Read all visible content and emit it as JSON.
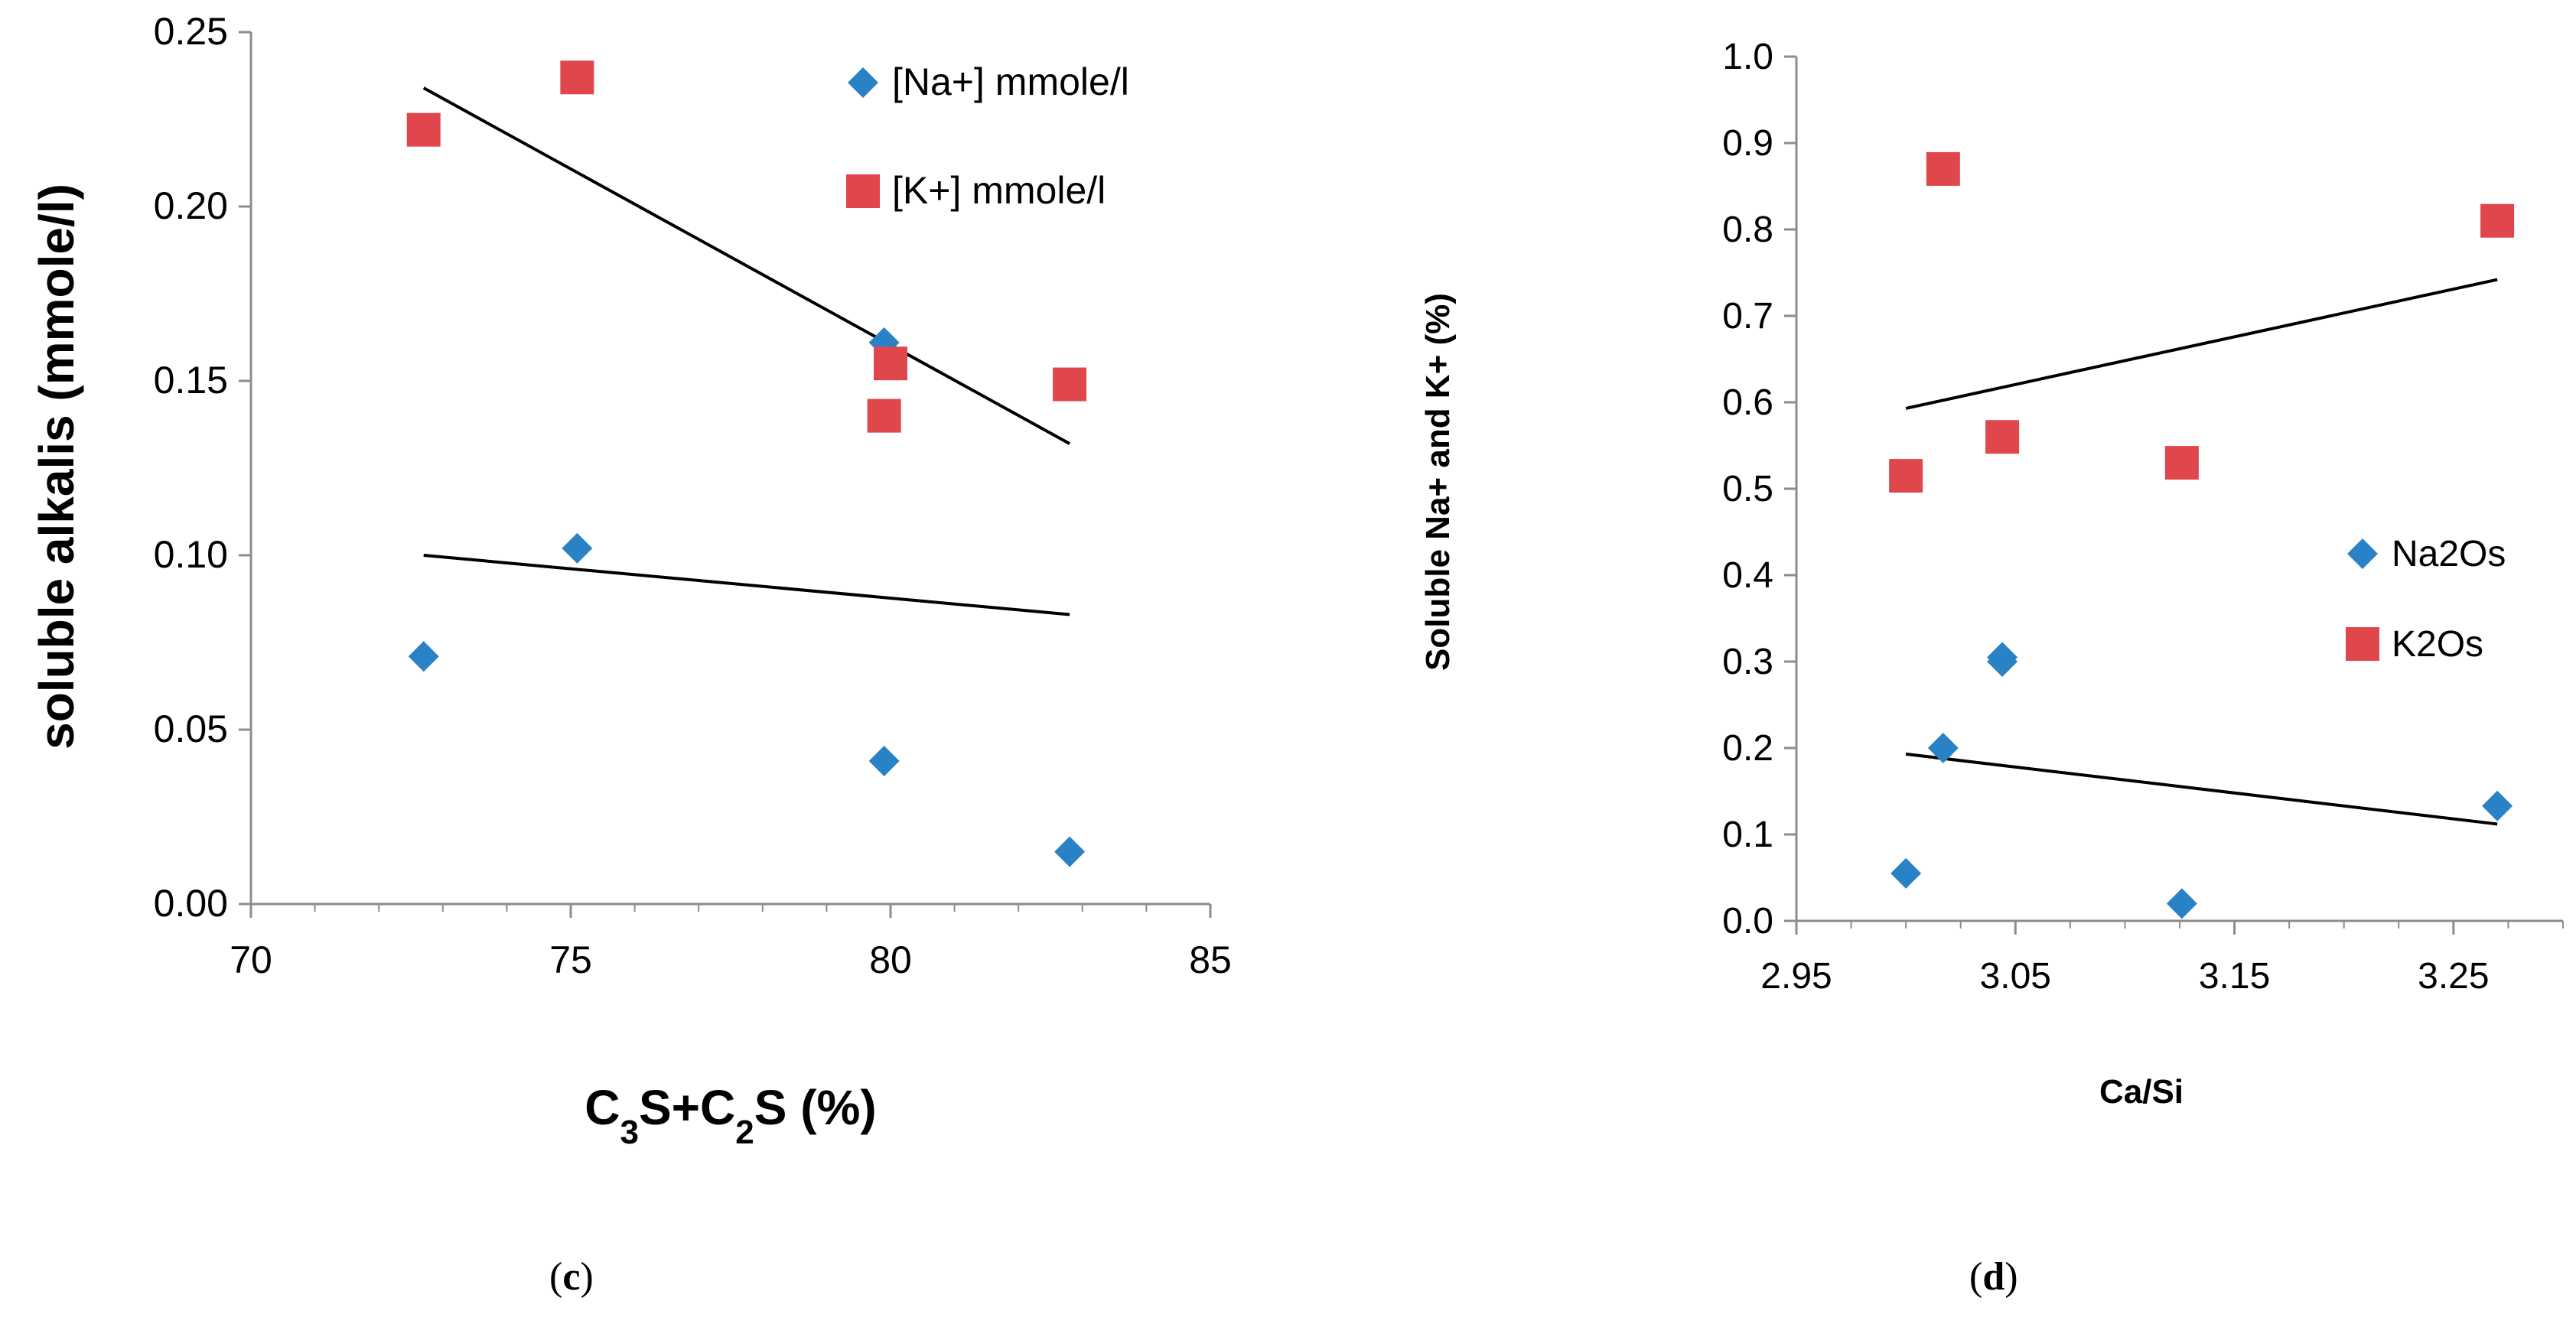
{
  "chart_data": [
    {
      "type": "scatter",
      "caption": "c",
      "title": "",
      "xlabel": "C3S+C2S (%)",
      "xlabel_parts": {
        "a": "C",
        "a_sub": "3",
        "b": "S+C",
        "b_sub": "2",
        "c": "S (%)"
      },
      "ylabel": "soluble alkalis (mmole/l)",
      "xlim": [
        70,
        85
      ],
      "ylim": [
        0,
        0.25
      ],
      "xticks": [
        "70",
        "75",
        "80",
        "85"
      ],
      "yticks": [
        "0.00",
        "0.05",
        "0.10",
        "0.15",
        "0.20",
        "0.25"
      ],
      "legend_position": "top-right",
      "series": [
        {
          "name": "[Na+] mmole/l",
          "marker": "diamond",
          "color": "#2a82c6",
          "points": [
            [
              72.7,
              0.071
            ],
            [
              75.1,
              0.102
            ],
            [
              79.9,
              0.161
            ],
            [
              79.9,
              0.041
            ],
            [
              82.8,
              0.015
            ]
          ],
          "trendline": [
            [
              72.7,
              0.1
            ],
            [
              82.8,
              0.083
            ]
          ]
        },
        {
          "name": "[K+] mmole/l",
          "marker": "square",
          "color": "#e0474c",
          "points": [
            [
              72.7,
              0.222
            ],
            [
              75.1,
              0.237
            ],
            [
              80.0,
              0.155
            ],
            [
              79.9,
              0.14
            ],
            [
              82.8,
              0.149
            ]
          ],
          "trendline": [
            [
              72.7,
              0.234
            ],
            [
              82.8,
              0.132
            ]
          ]
        }
      ]
    },
    {
      "type": "scatter",
      "caption": "d",
      "title": "",
      "xlabel": "Ca/Si",
      "ylabel": "Soluble Na+ and K+ (%)",
      "xlim": [
        2.95,
        3.3
      ],
      "ylim": [
        0,
        1.0
      ],
      "xticks": [
        "2.95",
        "3.05",
        "3.15",
        "3.25"
      ],
      "xtick_values": [
        2.95,
        3.05,
        3.15,
        3.25
      ],
      "yticks": [
        "0.0",
        "0.1",
        "0.2",
        "0.3",
        "0.4",
        "0.5",
        "0.6",
        "0.7",
        "0.8",
        "0.9",
        "1.0"
      ],
      "legend_position": "right",
      "series": [
        {
          "name": "Na2Os",
          "marker": "diamond",
          "color": "#2a82c6",
          "points": [
            [
              3.0,
              0.055
            ],
            [
              3.017,
              0.2
            ],
            [
              3.044,
              0.3
            ],
            [
              3.044,
              0.305
            ],
            [
              3.126,
              0.02
            ],
            [
              3.27,
              0.133
            ]
          ],
          "trendline": [
            [
              3.0,
              0.193
            ],
            [
              3.27,
              0.112
            ]
          ]
        },
        {
          "name": "K2Os",
          "marker": "square",
          "color": "#e0474c",
          "points": [
            [
              3.0,
              0.515
            ],
            [
              3.017,
              0.87
            ],
            [
              3.044,
              0.56
            ],
            [
              3.126,
              0.53
            ],
            [
              3.27,
              0.81
            ]
          ],
          "trendline": [
            [
              3.0,
              0.593
            ],
            [
              3.27,
              0.742
            ]
          ]
        }
      ]
    }
  ]
}
